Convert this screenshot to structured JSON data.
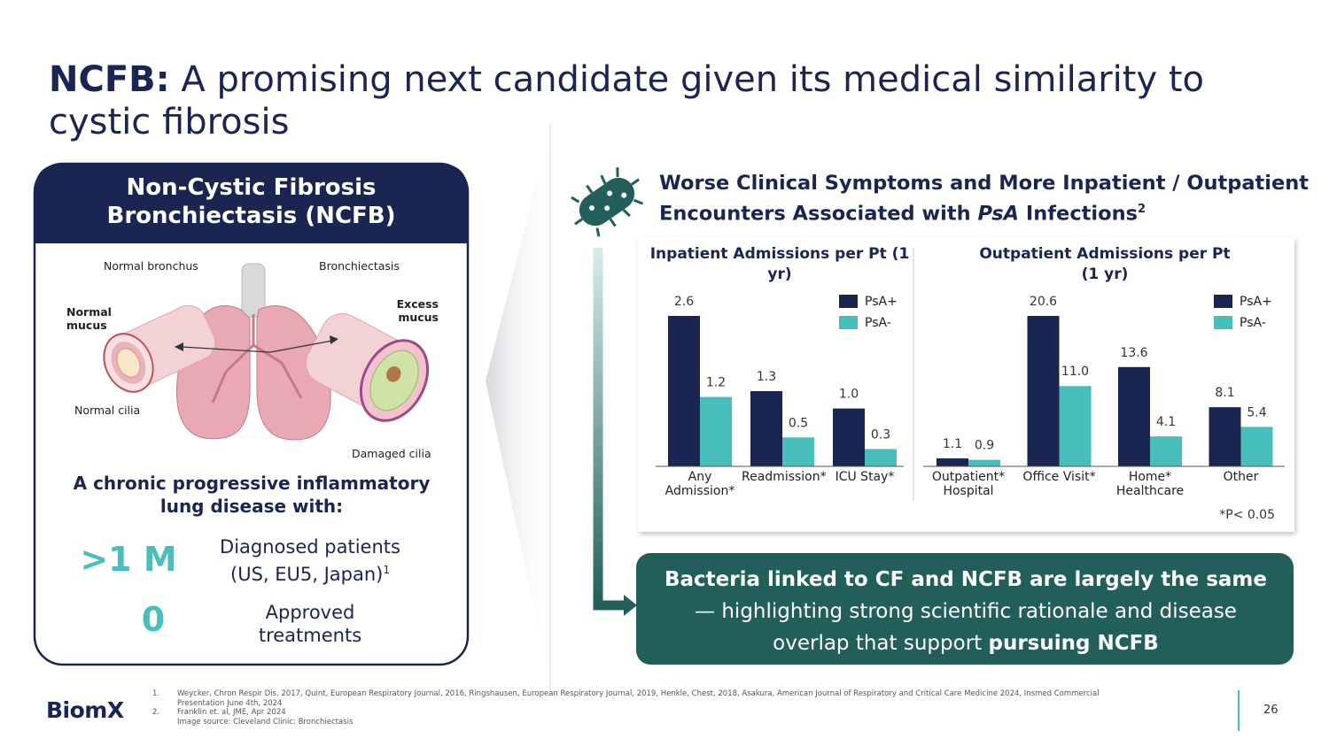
{
  "title": {
    "bold": "NCFB:",
    "rest": "A promising next candidate given its medical similarity to cystic fibrosis"
  },
  "left_panel": {
    "heading": "Non-Cystic Fibrosis Bronchiectasis (NCFB)",
    "image_labels": {
      "normal_bronchus": "Normal bronchus",
      "bronchiectasis": "Bronchiectasis",
      "normal_mucus": "Normal mucus",
      "normal_cilia": "Normal cilia",
      "excess_mucus": "Excess mucus",
      "damaged_cilia": "Damaged cilia"
    },
    "subheading": "A chronic progressive inflammatory lung disease with:",
    "stats": [
      {
        "value": ">1 M",
        "label": "Diagnosed patients (US, EU5, Japan)",
        "sup": "1"
      },
      {
        "value": "0",
        "label": "Approved treatments"
      }
    ]
  },
  "right_heading": {
    "text": "Worse Clinical Symptoms and More Inpatient / Outpatient Encounters Associated with",
    "italic": "PsA",
    "rest": "Infections",
    "sup": "2"
  },
  "chart_data": [
    {
      "type": "bar",
      "title": "Inpatient Admissions per Pt (1 yr)",
      "categories": [
        "Any Admission*",
        "Readmission*",
        "ICU Stay*"
      ],
      "series": [
        {
          "name": "PsA+",
          "color": "#1b2552",
          "values": [
            2.6,
            1.3,
            1.0
          ],
          "value_labels": [
            "2.6",
            "1.3",
            "1.0"
          ]
        },
        {
          "name": "PsA-",
          "color": "#48bfba",
          "values": [
            1.2,
            0.5,
            0.3
          ],
          "value_labels": [
            "1.2",
            "0.5",
            "0.3"
          ]
        }
      ],
      "legend": "upper right"
    },
    {
      "type": "bar",
      "title": "Outpatient Admissions per Pt (1 yr)",
      "categories": [
        "Outpatient* Hospital",
        "Office Visit*",
        "Home* Healthcare",
        "Other"
      ],
      "series": [
        {
          "name": "PsA+",
          "color": "#1b2552",
          "values": [
            1.1,
            20.6,
            13.6,
            8.1
          ],
          "value_labels": [
            "1.1",
            "20.6",
            "13.6",
            "8.1"
          ]
        },
        {
          "name": "PsA-",
          "color": "#48bfba",
          "values": [
            0.9,
            11.0,
            4.1,
            5.4
          ],
          "value_labels": [
            "0.9",
            "11.0",
            "4.1",
            "5.4"
          ]
        }
      ],
      "legend": "upper right",
      "note": "*P< 0.05"
    }
  ],
  "callout": {
    "bold_start": "Bacteria linked to CF and NCFB are largely the same",
    "middle": "— highlighting strong scientific rationale and disease overlap that support",
    "bold_end": "pursuing NCFB"
  },
  "footnotes": [
    {
      "number": "1.",
      "text": "Weycker, Chron Respir Dis. 2017, Quint, European Respiratory Journal, 2016, Ringshausen, European Respiratory Journal, 2019, Henkle, Chest, 2018, Asakura, American Journal of Respiratory and Critical Care Medicine 2024, Insmed Commercial Presentation June 4th, 2024"
    },
    {
      "number": "2.",
      "text": "Franklin et. al, JME, Apr 2024"
    }
  ],
  "image_source": "Image source: Cleveland Clinic: Bronchiectasis",
  "logo": "BiomX",
  "page_number": "26"
}
